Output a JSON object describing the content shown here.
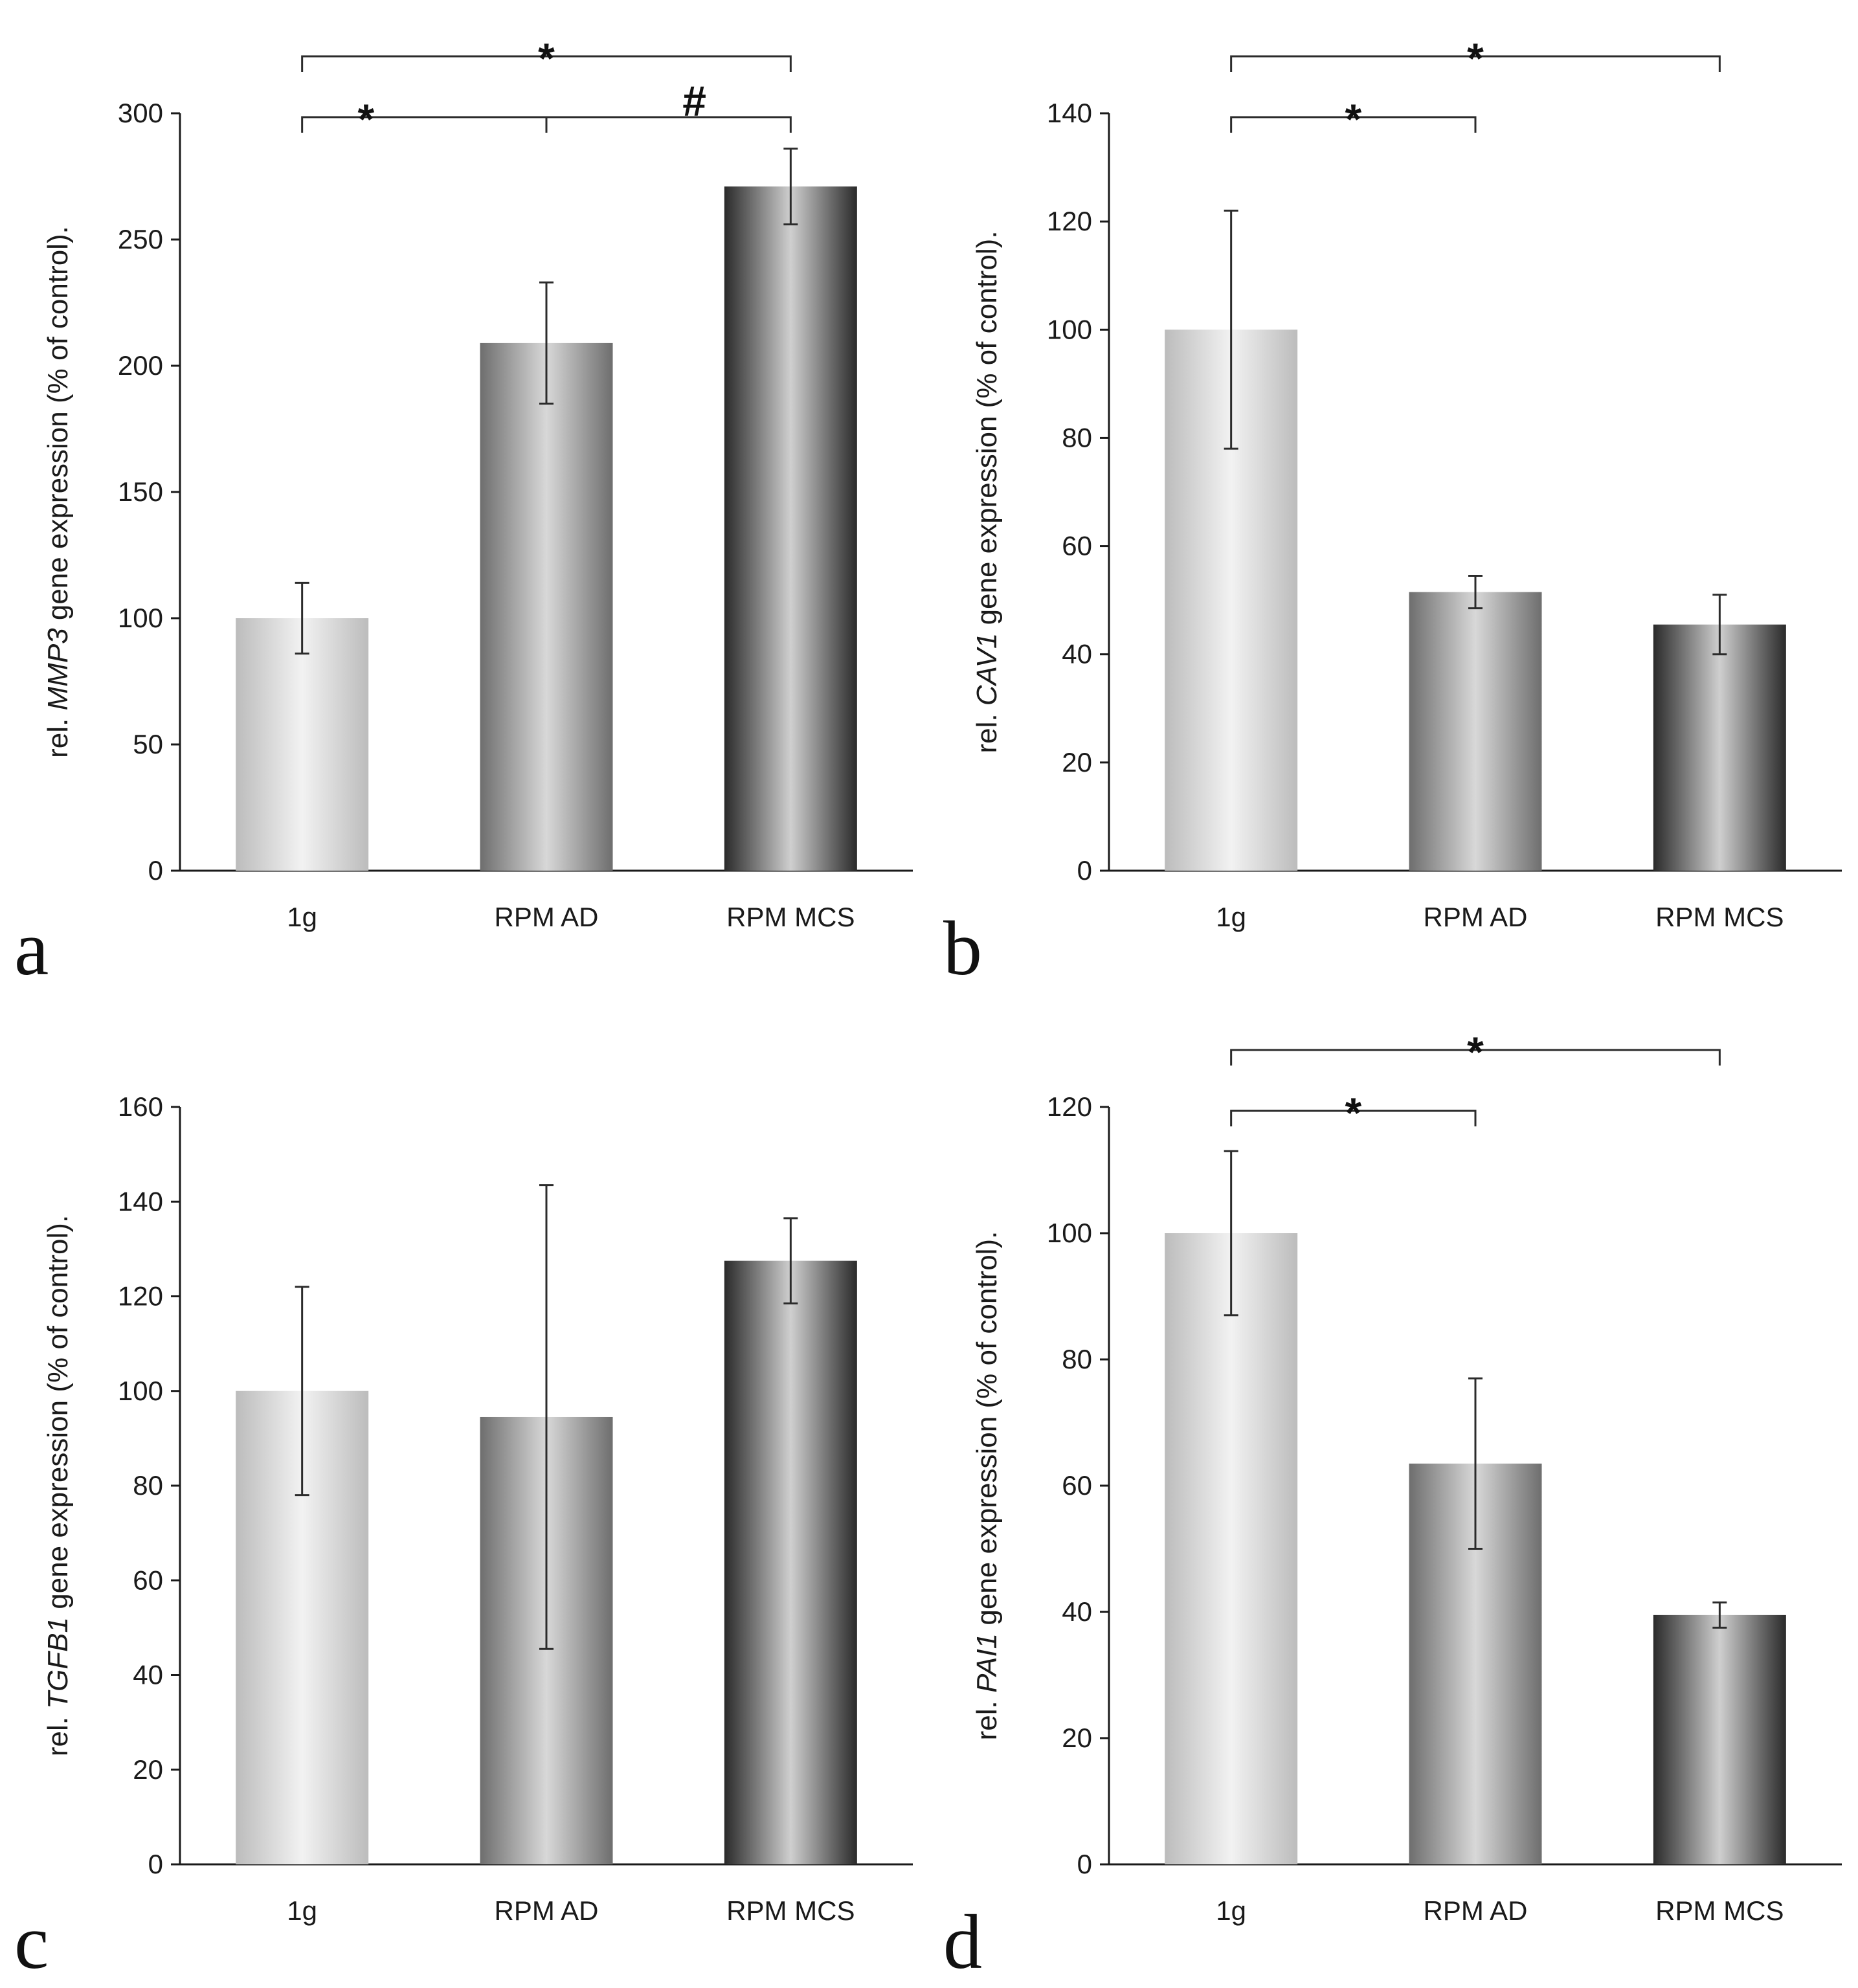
{
  "chart_data": [
    {
      "type": "bar",
      "panel_label": "a",
      "categories": [
        "1g",
        "RPM AD",
        "RPM MCS"
      ],
      "values": [
        100,
        209,
        271
      ],
      "errors": [
        14,
        24,
        15
      ],
      "ylim": [
        0,
        300
      ],
      "yticks": [
        0,
        50,
        100,
        150,
        200,
        250,
        300
      ],
      "ylabel": {
        "prefix": "rel. ",
        "gene": "MMP3",
        "suffix": " gene expression (% of control)."
      },
      "xlabel": "",
      "significance": [
        {
          "from": 0,
          "to": 1,
          "mark": "*"
        },
        {
          "from": 1,
          "to": 2,
          "mark": "#"
        },
        {
          "from": 0,
          "to": 2,
          "mark": "*"
        }
      ]
    },
    {
      "type": "bar",
      "panel_label": "b",
      "categories": [
        "1g",
        "RPM AD",
        "RPM MCS"
      ],
      "values": [
        100,
        51.5,
        45.5
      ],
      "errors": [
        22,
        3,
        5.5
      ],
      "ylim": [
        0,
        140
      ],
      "yticks": [
        0,
        20,
        40,
        60,
        80,
        100,
        120,
        140
      ],
      "ylabel": {
        "prefix": "rel. ",
        "gene": "CAV1",
        "suffix": " gene expression (% of control)."
      },
      "xlabel": "",
      "significance": [
        {
          "from": 0,
          "to": 1,
          "mark": "*"
        },
        {
          "from": 0,
          "to": 2,
          "mark": "*"
        }
      ]
    },
    {
      "type": "bar",
      "panel_label": "c",
      "categories": [
        "1g",
        "RPM AD",
        "RPM MCS"
      ],
      "values": [
        100,
        94.5,
        127.5
      ],
      "errors": [
        22,
        49,
        9
      ],
      "ylim": [
        0,
        160
      ],
      "yticks": [
        0,
        20,
        40,
        60,
        80,
        100,
        120,
        140,
        160
      ],
      "ylabel": {
        "prefix": "rel. ",
        "gene": "TGFB1",
        "suffix": " gene expression (% of control)."
      },
      "xlabel": "",
      "significance": []
    },
    {
      "type": "bar",
      "panel_label": "d",
      "categories": [
        "1g",
        "RPM AD",
        "RPM MCS"
      ],
      "values": [
        100,
        63.5,
        39.5
      ],
      "errors": [
        13,
        13.5,
        2
      ],
      "ylim": [
        0,
        120
      ],
      "yticks": [
        0,
        20,
        40,
        60,
        80,
        100,
        120
      ],
      "ylabel": {
        "prefix": "rel. ",
        "gene": "PAI1",
        "suffix": " gene expression (% of control)."
      },
      "xlabel": "",
      "significance": [
        {
          "from": 0,
          "to": 1,
          "mark": "*"
        },
        {
          "from": 0,
          "to": 2,
          "mark": "*"
        }
      ]
    }
  ]
}
